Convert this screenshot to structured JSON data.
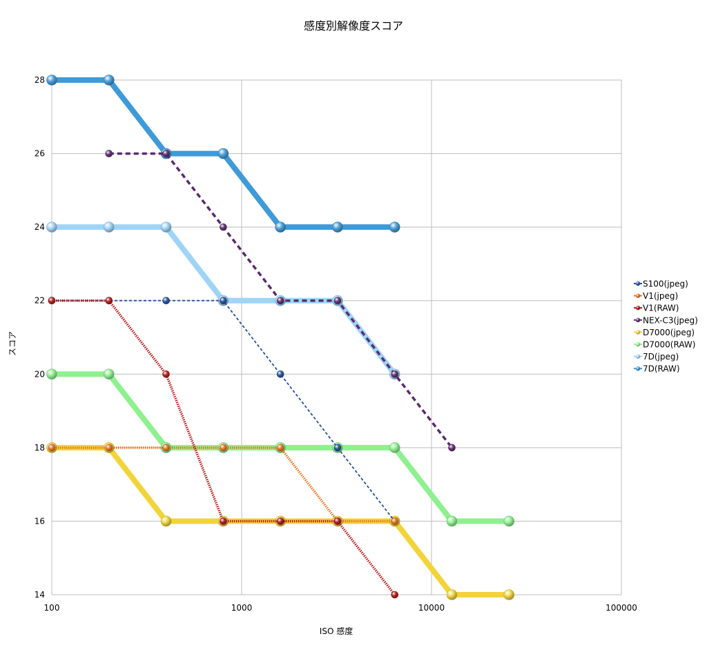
{
  "chart_data": {
    "type": "line",
    "title": "感度別解像度スコア",
    "xlabel": "ISO 感度",
    "ylabel": "スコア",
    "x_scale": "log",
    "xlim": [
      100,
      100000
    ],
    "ylim": [
      14,
      28
    ],
    "x_ticks": [
      100,
      1000,
      10000,
      100000
    ],
    "y_ticks": [
      14,
      16,
      18,
      20,
      22,
      24,
      26,
      28
    ],
    "grid": true,
    "legend_position": "right",
    "series": [
      {
        "name": "S100(jpeg)",
        "color": "#1f4e99",
        "style": "dashed-thin",
        "x": [
          100,
          200,
          400,
          800,
          1600,
          3200,
          6400
        ],
        "y": [
          22,
          22,
          22,
          22,
          20,
          18,
          16
        ]
      },
      {
        "name": "V1(jpeg)",
        "color": "#e8731e",
        "style": "dotted",
        "x": [
          100,
          200,
          400,
          800,
          1600,
          3200,
          6400
        ],
        "y": [
          18,
          18,
          18,
          18,
          18,
          16,
          16
        ]
      },
      {
        "name": "V1(RAW)",
        "color": "#b01515",
        "style": "dotted",
        "x": [
          100,
          200,
          400,
          800,
          1600,
          3200,
          6400
        ],
        "y": [
          22,
          22,
          20,
          16,
          16,
          16,
          14
        ]
      },
      {
        "name": "NEX-C3(jpeg)",
        "color": "#5b2a6e",
        "style": "dashed",
        "x": [
          200,
          400,
          800,
          1600,
          3200,
          6400,
          12800
        ],
        "y": [
          26,
          26,
          24,
          22,
          22,
          20,
          18
        ]
      },
      {
        "name": "D7000(jpeg)",
        "color": "#f2d43a",
        "style": "thick",
        "x": [
          100,
          200,
          400,
          800,
          1600,
          3200,
          6400,
          12800,
          25600
        ],
        "y": [
          18,
          18,
          16,
          16,
          16,
          16,
          16,
          14,
          14
        ]
      },
      {
        "name": "D7000(RAW)",
        "color": "#8ef08e",
        "style": "thick",
        "x": [
          100,
          200,
          400,
          800,
          1600,
          3200,
          6400,
          12800,
          25600
        ],
        "y": [
          20,
          20,
          18,
          18,
          18,
          18,
          18,
          16,
          16
        ]
      },
      {
        "name": "7D(jpeg)",
        "color": "#9fd4f7",
        "style": "thick",
        "x": [
          100,
          200,
          400,
          800,
          1600,
          3200,
          6400
        ],
        "y": [
          24,
          24,
          24,
          22,
          22,
          22,
          20
        ]
      },
      {
        "name": "7D(RAW)",
        "color": "#3f9ad8",
        "style": "thick",
        "x": [
          100,
          200,
          400,
          800,
          1600,
          3200,
          6400
        ],
        "y": [
          28,
          28,
          26,
          26,
          24,
          24,
          24
        ]
      }
    ]
  }
}
